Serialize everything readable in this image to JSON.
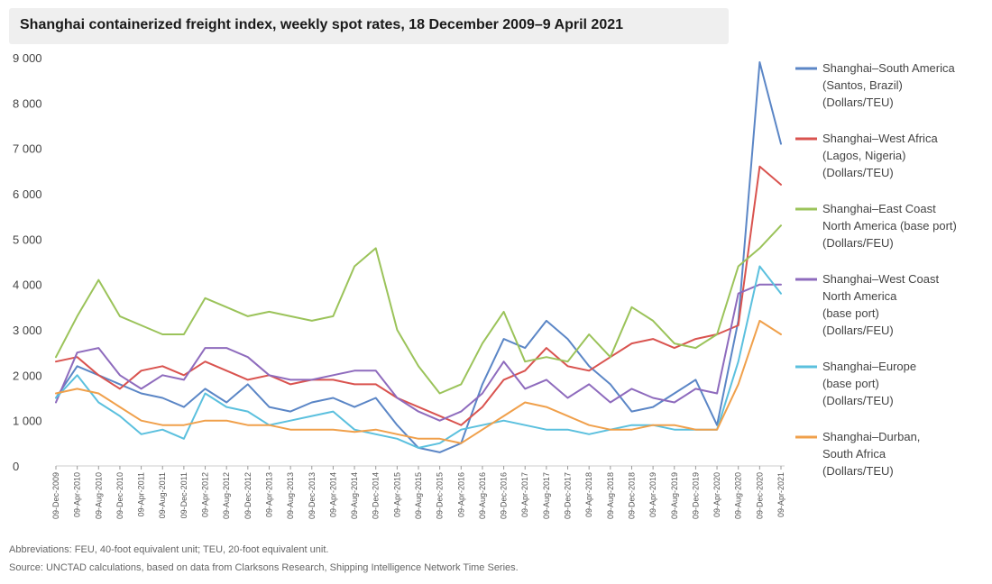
{
  "chart_data": {
    "type": "line",
    "title": "Shanghai containerized freight index, weekly spot rates, 18 December 2009–9 April 2021",
    "xlabel": "",
    "ylabel": "",
    "ylim": [
      0,
      9000
    ],
    "yticks": [
      0,
      1000,
      2000,
      3000,
      4000,
      5000,
      6000,
      7000,
      8000,
      9000
    ],
    "ytick_labels": [
      "0",
      "1 000",
      "2 000",
      "3 000",
      "4 000",
      "5 000",
      "6 000",
      "7 000",
      "8 000",
      "9 000"
    ],
    "grid": false,
    "legend_position": "right",
    "x": [
      "09-Dec-2009",
      "09-Apr-2010",
      "09-Aug-2010",
      "09-Dec-2010",
      "09-Apr-2011",
      "09-Aug-2011",
      "09-Dec-2011",
      "09-Apr-2012",
      "09-Aug-2012",
      "09-Dec-2012",
      "09-Apr-2013",
      "09-Aug-2013",
      "09-Dec-2013",
      "09-Apr-2014",
      "09-Aug-2014",
      "09-Dec-2014",
      "09-Apr-2015",
      "09-Aug-2015",
      "09-Dec-2015",
      "09-Apr-2016",
      "09-Aug-2016",
      "09-Dec-2016",
      "09-Apr-2017",
      "09-Aug-2017",
      "09-Dec-2017",
      "09-Apr-2018",
      "09-Aug-2018",
      "09-Dec-2018",
      "09-Apr-2019",
      "09-Aug-2019",
      "09-Dec-2019",
      "09-Apr-2020",
      "09-Aug-2020",
      "09-Dec-2020",
      "09-Apr-2021"
    ],
    "series": [
      {
        "name": "Shanghai–South America (Santos, Brazil) (Dollars/TEU)",
        "legend_lines": [
          "Shanghai–South America",
          "(Santos, Brazil)",
          "(Dollars/TEU)"
        ],
        "color": "#5b86c6",
        "values": [
          1500,
          2200,
          2000,
          1800,
          1600,
          1500,
          1300,
          1700,
          1400,
          1800,
          1300,
          1200,
          1400,
          1500,
          1300,
          1500,
          900,
          400,
          300,
          500,
          1800,
          2800,
          2600,
          3200,
          2800,
          2200,
          1800,
          1200,
          1300,
          1600,
          1900,
          900,
          3200,
          8900,
          7100
        ]
      },
      {
        "name": "Shanghai–West Africa (Lagos, Nigeria) (Dollars/TEU)",
        "legend_lines": [
          "Shanghai–West Africa",
          "(Lagos, Nigeria)",
          "(Dollars/TEU)"
        ],
        "color": "#d9534f",
        "values": [
          2300,
          2400,
          2000,
          1700,
          2100,
          2200,
          2000,
          2300,
          2100,
          1900,
          2000,
          1800,
          1900,
          1900,
          1800,
          1800,
          1500,
          1300,
          1100,
          900,
          1300,
          1900,
          2100,
          2600,
          2200,
          2100,
          2400,
          2700,
          2800,
          2600,
          2800,
          2900,
          3100,
          6600,
          6200
        ]
      },
      {
        "name": "Shanghai–East Coast North America (base port) (Dollars/FEU)",
        "legend_lines": [
          "Shanghai–East Coast",
          "North America (base port)",
          "(Dollars/FEU)"
        ],
        "color": "#9bc35a",
        "values": [
          2400,
          3300,
          4100,
          3300,
          3100,
          2900,
          2900,
          3700,
          3500,
          3300,
          3400,
          3300,
          3200,
          3300,
          4400,
          4800,
          3000,
          2200,
          1600,
          1800,
          2700,
          3400,
          2300,
          2400,
          2300,
          2900,
          2400,
          3500,
          3200,
          2700,
          2600,
          2900,
          4400,
          4800,
          5300
        ]
      },
      {
        "name": "Shanghai–West Coast North America (base port) (Dollars/FEU)",
        "legend_lines": [
          "Shanghai–West Coast",
          "North America",
          "(base port)",
          "(Dollars/FEU)"
        ],
        "color": "#8e6bbd",
        "values": [
          1400,
          2500,
          2600,
          2000,
          1700,
          2000,
          1900,
          2600,
          2600,
          2400,
          2000,
          1900,
          1900,
          2000,
          2100,
          2100,
          1500,
          1200,
          1000,
          1200,
          1600,
          2300,
          1700,
          1900,
          1500,
          1800,
          1400,
          1700,
          1500,
          1400,
          1700,
          1600,
          3800,
          4000,
          4000
        ]
      },
      {
        "name": "Shanghai–Europe (base port) (Dollars/TEU)",
        "legend_lines": [
          "Shanghai–Europe",
          "(base port)",
          "(Dollars/TEU)"
        ],
        "color": "#5bc0de",
        "values": [
          1500,
          2000,
          1400,
          1100,
          700,
          800,
          600,
          1600,
          1300,
          1200,
          900,
          1000,
          1100,
          1200,
          800,
          700,
          600,
          400,
          500,
          800,
          900,
          1000,
          900,
          800,
          800,
          700,
          800,
          900,
          900,
          800,
          800,
          800,
          2300,
          4400,
          3800
        ]
      },
      {
        "name": "Shanghai–Durban, South Africa (Dollars/TEU)",
        "legend_lines": [
          "Shanghai–Durban,",
          "South Africa",
          "(Dollars/TEU)"
        ],
        "color": "#f0a04b",
        "values": [
          1600,
          1700,
          1600,
          1300,
          1000,
          900,
          900,
          1000,
          1000,
          900,
          900,
          800,
          800,
          800,
          750,
          800,
          700,
          600,
          600,
          500,
          800,
          1100,
          1400,
          1300,
          1100,
          900,
          800,
          800,
          900,
          900,
          800,
          800,
          1800,
          3200,
          2900
        ]
      }
    ]
  },
  "footnotes": {
    "abbreviations": "Abbreviations: FEU, 40-foot equivalent unit; TEU, 20-foot equivalent unit.",
    "source": "Source: UNCTAD calculations, based on data from Clarksons Research, Shipping Intelligence Network Time Series."
  }
}
